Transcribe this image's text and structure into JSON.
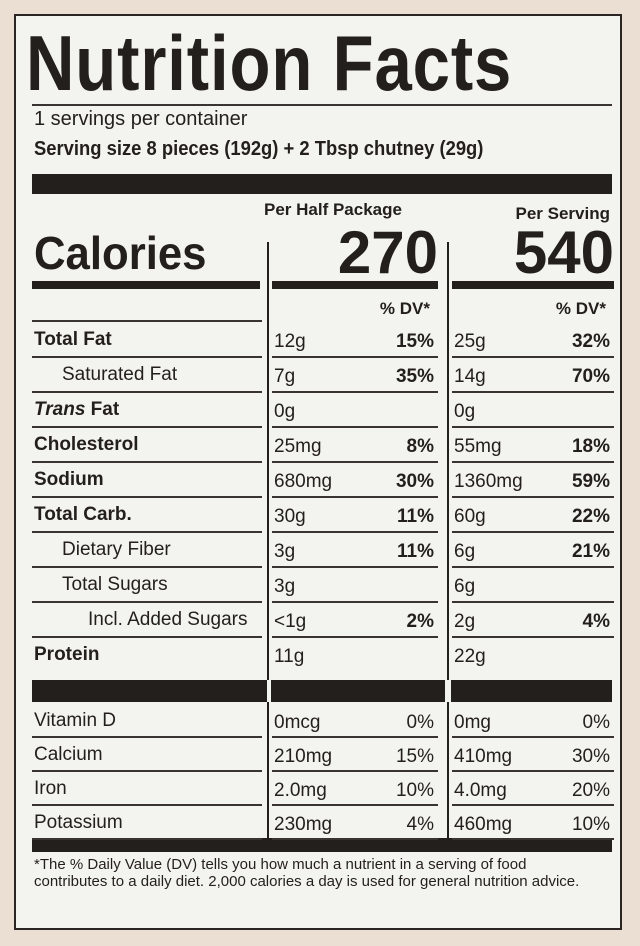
{
  "title": "Nutrition Facts",
  "servings": "1 servings per container",
  "serving_size": "Serving size 8 pieces (192g) + 2 Tbsp chutney (29g)",
  "columns": [
    {
      "header": "Per Half Package",
      "calories": "270",
      "dv_header": "% DV*"
    },
    {
      "header": "Per Serving",
      "calories": "540",
      "dv_header": "% DV*"
    }
  ],
  "calories_label": "Calories",
  "nutrients": [
    {
      "name": "Total Fat",
      "cells": [
        [
          "12g",
          "15%"
        ],
        [
          "25g",
          "32%"
        ]
      ]
    },
    {
      "name": "Saturated Fat",
      "cells": [
        [
          "7g",
          "35%"
        ],
        [
          "14g",
          "70%"
        ]
      ]
    },
    {
      "name_italic": "Trans",
      "name": " Fat",
      "cells": [
        [
          "0g"
        ],
        [
          "0g"
        ]
      ]
    },
    {
      "name": "Cholesterol",
      "cells": [
        [
          "25mg",
          "8%"
        ],
        [
          "55mg",
          "18%"
        ]
      ]
    },
    {
      "name": "Sodium",
      "cells": [
        [
          "680mg",
          "30%"
        ],
        [
          "1360mg",
          "59%"
        ]
      ]
    },
    {
      "name": "Total Carb.",
      "cells": [
        [
          "30g",
          "11%"
        ],
        [
          "60g",
          "22%"
        ]
      ]
    },
    {
      "name": "Dietary Fiber",
      "cells": [
        [
          "3g",
          "11%"
        ],
        [
          "6g",
          "21%"
        ]
      ]
    },
    {
      "name": "Total Sugars",
      "cells": [
        [
          "3g"
        ],
        [
          "6g"
        ]
      ]
    },
    {
      "name": "Incl. Added Sugars",
      "cells": [
        [
          "<1g",
          "2%"
        ],
        [
          "2g",
          "4%"
        ]
      ]
    },
    {
      "name": "Protein",
      "cells": [
        [
          "11g"
        ],
        [
          "22g"
        ]
      ]
    }
  ],
  "vitamins_minerals": [
    {
      "name": "Vitamin D",
      "cells": [
        [
          "0mcg",
          "0%"
        ],
        [
          "0mg",
          "0%"
        ]
      ]
    },
    {
      "name": "Calcium",
      "cells": [
        [
          "210mg",
          "15%"
        ],
        [
          "410mg",
          "30%"
        ]
      ]
    },
    {
      "name": "Iron",
      "cells": [
        [
          "2.0mg",
          "10%"
        ],
        [
          "4.0mg",
          "20%"
        ]
      ]
    },
    {
      "name": "Potassium",
      "cells": [
        [
          "230mg",
          "4%"
        ],
        [
          "460mg",
          "10%"
        ]
      ]
    }
  ],
  "footnote": "*The % Daily Value (DV) tells you how much a nutrient in a serving of food contributes to a daily diet. 2,000 calories a day is used for general nutrition advice."
}
